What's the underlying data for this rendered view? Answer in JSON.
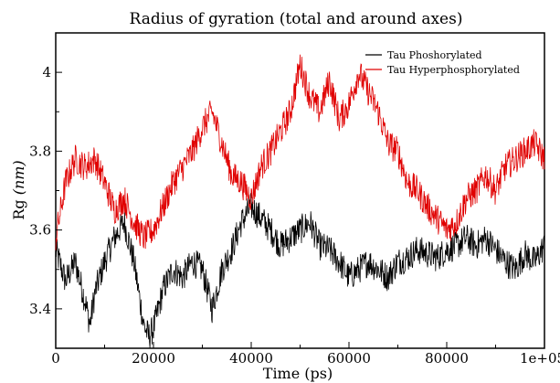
{
  "chart_data": {
    "type": "line",
    "title": "Radius of gyration (total and around axes)",
    "xlabel": "Time (ps)",
    "ylabel_main": "Rg",
    "ylabel_unit": "(nm)",
    "xlim": [
      0,
      100000
    ],
    "ylim": [
      3.3,
      4.1
    ],
    "x_ticks": [
      0,
      20000,
      40000,
      60000,
      80000,
      100000
    ],
    "x_tick_labels": [
      "0",
      "20000",
      "40000",
      "60000",
      "80000",
      "1e+05"
    ],
    "y_ticks": [
      3.4,
      3.6,
      3.8,
      4.0
    ],
    "y_tick_labels": [
      "3.4",
      "3.6",
      "3.8",
      "4"
    ],
    "grid": false,
    "legend_position": "top-right",
    "series": [
      {
        "name": "Tau Phoshorylated",
        "color": "#000000",
        "x": [
          0,
          2000,
          4000,
          6000,
          7000,
          8000,
          10000,
          12000,
          14000,
          16000,
          18000,
          19000,
          20000,
          22000,
          24000,
          26000,
          28000,
          30000,
          32000,
          34000,
          36000,
          38000,
          40000,
          42000,
          44000,
          46000,
          48000,
          50000,
          52000,
          54000,
          56000,
          58000,
          60000,
          62000,
          64000,
          66000,
          68000,
          70000,
          72000,
          74000,
          76000,
          78000,
          80000,
          82000,
          84000,
          86000,
          88000,
          90000,
          92000,
          94000,
          96000,
          98000,
          100000
        ],
        "y": [
          3.55,
          3.47,
          3.52,
          3.42,
          3.36,
          3.44,
          3.52,
          3.58,
          3.62,
          3.52,
          3.36,
          3.33,
          3.35,
          3.45,
          3.5,
          3.48,
          3.52,
          3.5,
          3.4,
          3.5,
          3.55,
          3.62,
          3.66,
          3.63,
          3.6,
          3.56,
          3.58,
          3.6,
          3.62,
          3.56,
          3.55,
          3.52,
          3.48,
          3.5,
          3.52,
          3.5,
          3.48,
          3.52,
          3.53,
          3.55,
          3.54,
          3.53,
          3.55,
          3.56,
          3.58,
          3.56,
          3.58,
          3.55,
          3.52,
          3.5,
          3.54,
          3.52,
          3.56
        ]
      },
      {
        "name": "Tau Hyperphosphorylated",
        "color": "#e00000",
        "x": [
          0,
          2000,
          4000,
          6000,
          8000,
          10000,
          12000,
          14000,
          16000,
          18000,
          20000,
          22000,
          24000,
          26000,
          28000,
          30000,
          32000,
          34000,
          36000,
          38000,
          40000,
          42000,
          44000,
          46000,
          48000,
          50000,
          52000,
          54000,
          56000,
          58000,
          60000,
          62000,
          64000,
          66000,
          68000,
          70000,
          72000,
          74000,
          76000,
          78000,
          80000,
          82000,
          84000,
          86000,
          88000,
          90000,
          92000,
          94000,
          96000,
          98000,
          100000
        ],
        "y": [
          3.58,
          3.72,
          3.78,
          3.76,
          3.78,
          3.72,
          3.65,
          3.68,
          3.62,
          3.58,
          3.6,
          3.66,
          3.72,
          3.76,
          3.8,
          3.86,
          3.9,
          3.82,
          3.74,
          3.72,
          3.68,
          3.76,
          3.8,
          3.85,
          3.9,
          4.02,
          3.94,
          3.9,
          3.98,
          3.88,
          3.92,
          4.0,
          3.95,
          3.9,
          3.82,
          3.8,
          3.72,
          3.7,
          3.66,
          3.63,
          3.6,
          3.62,
          3.68,
          3.7,
          3.74,
          3.7,
          3.76,
          3.78,
          3.8,
          3.82,
          3.78
        ]
      }
    ]
  }
}
